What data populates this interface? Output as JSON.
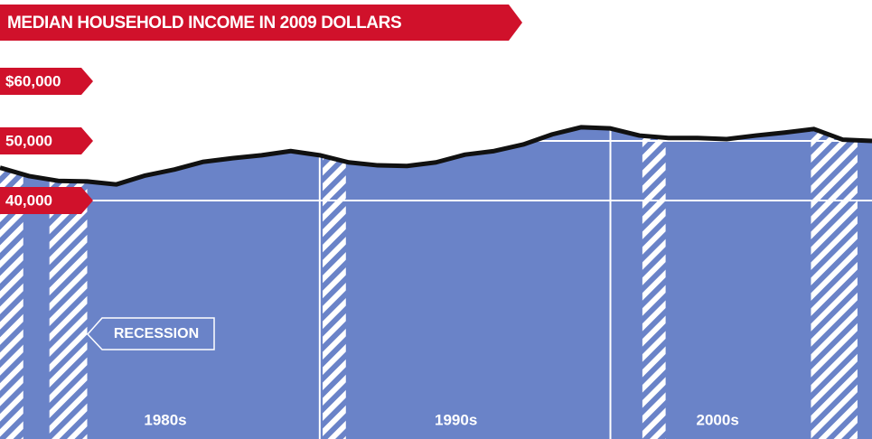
{
  "chart_data": {
    "type": "area",
    "title": "MEDIAN HOUSEHOLD INCOME IN 2009 DOLLARS",
    "x": [
      1979,
      1980,
      1981,
      1982,
      1983,
      1984,
      1985,
      1986,
      1987,
      1988,
      1989,
      1990,
      1991,
      1992,
      1993,
      1994,
      1995,
      1996,
      1997,
      1998,
      1999,
      2000,
      2001,
      2002,
      2003,
      2004,
      2005,
      2006,
      2007,
      2008,
      2009
    ],
    "series": [
      {
        "color": "#6a83c8",
        "values": [
          45500,
          44100,
          43300,
          43200,
          42700,
          44200,
          45200,
          46500,
          47100,
          47600,
          48300,
          47600,
          46400,
          45900,
          45800,
          46400,
          47700,
          48300,
          49400,
          51100,
          52300,
          52100,
          50900,
          50500,
          50500,
          50300,
          50900,
          51400,
          52000,
          50200,
          50000
        ]
      }
    ],
    "xlim": [
      1979,
      2009
    ],
    "ylim": [
      0,
      60000
    ],
    "yticks": [
      {
        "value": 40000,
        "label": "40,000"
      },
      {
        "value": 50000,
        "label": "50,000"
      },
      {
        "value": 60000,
        "label": "$60,000"
      }
    ],
    "xgrid": [
      1990,
      2000
    ],
    "decade_labels": [
      {
        "value": 1985,
        "label": "1980s"
      },
      {
        "value": 1995,
        "label": "1990s"
      },
      {
        "value": 2004,
        "label": "2000s"
      }
    ],
    "recessions": [
      [
        1979,
        1979.8
      ],
      [
        1980.7,
        1982
      ],
      [
        1990.1,
        1990.9
      ],
      [
        2001.1,
        2001.9
      ],
      [
        2006.9,
        2008.5
      ]
    ],
    "annotation": "RECESSION",
    "grid": true
  }
}
